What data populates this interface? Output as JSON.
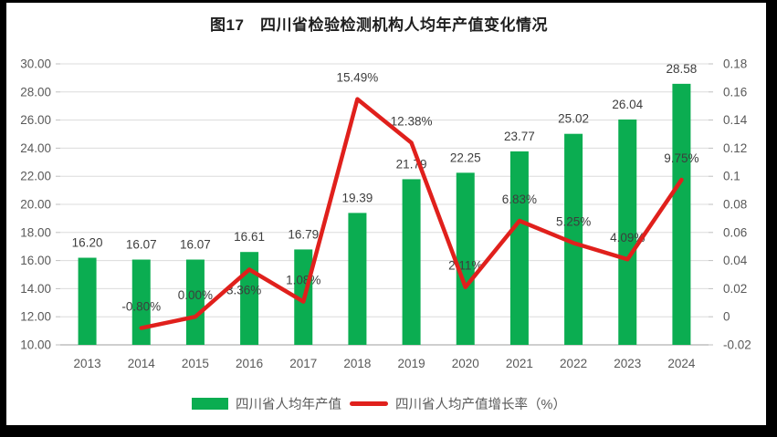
{
  "chart_data": {
    "type": "combo-bar-line",
    "title": "图17　四川省检验检测机构人均年产值变化情况",
    "categories": [
      "2013",
      "2014",
      "2015",
      "2016",
      "2017",
      "2018",
      "2019",
      "2020",
      "2021",
      "2022",
      "2023",
      "2024"
    ],
    "series": [
      {
        "name": "四川省人均年产值",
        "type": "bar",
        "axis": "left",
        "color": "#0BAD51",
        "values": [
          16.2,
          16.07,
          16.07,
          16.61,
          16.79,
          19.39,
          21.79,
          22.25,
          23.77,
          25.02,
          26.04,
          28.58
        ],
        "labels": [
          "16.20",
          "16.07",
          "16.07",
          "16.61",
          "16.79",
          "19.39",
          "21.79",
          "22.25",
          "23.77",
          "25.02",
          "26.04",
          "28.58"
        ]
      },
      {
        "name": "四川省人均产值增长率（%）",
        "type": "line",
        "axis": "right",
        "color": "#E0201C",
        "values": [
          null,
          -0.008,
          0.0,
          0.0336,
          0.0108,
          0.1549,
          0.1238,
          0.0211,
          0.0683,
          0.0525,
          0.0409,
          0.0975
        ],
        "labels": [
          "",
          "-0.80%",
          "0.00%",
          "3.36%",
          "1.08%",
          "15.49%",
          "12.38%",
          "2.11%",
          "6.83%",
          "5.25%",
          "4.09%",
          "9.75%"
        ]
      }
    ],
    "left_axis": {
      "min": 10,
      "max": 30,
      "step": 2,
      "tick_labels": [
        "30.00",
        "28.00",
        "26.00",
        "24.00",
        "22.00",
        "20.00",
        "18.00",
        "16.00",
        "14.00",
        "12.00",
        "10.00"
      ]
    },
    "right_axis": {
      "min": -0.02,
      "max": 0.18,
      "step": 0.02,
      "tick_labels": [
        "0.18",
        "0.16",
        "0.14",
        "0.12",
        "0.1",
        "0.08",
        "0.06",
        "0.04",
        "0.02",
        "0",
        "-0.02"
      ]
    },
    "grid": true,
    "legend_position": "bottom",
    "legend": [
      "四川省人均年产值",
      "四川省人均产值增长率（%）"
    ],
    "colors": {
      "bar": "#0BAD51",
      "line": "#E0201C",
      "gridline": "#DCDCDC",
      "axis_line": "#BFBFBF",
      "tick_text": "#595959",
      "data_label": "#3D3D3D",
      "title_text": "#1F1F1F",
      "frame": "#000000"
    }
  }
}
